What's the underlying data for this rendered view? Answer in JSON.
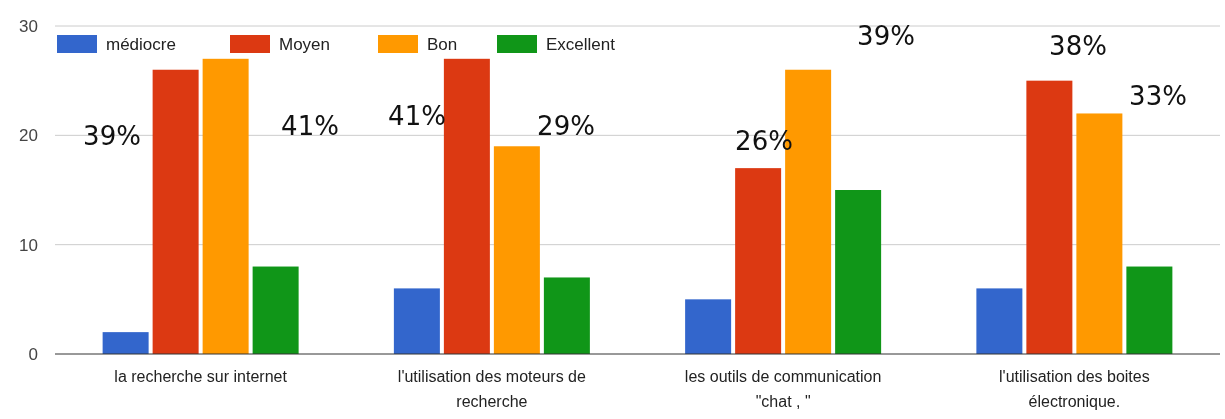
{
  "chart_data": {
    "type": "bar",
    "categories": [
      "la recherche sur internet",
      "l'utilisation des moteurs de recherche",
      "les outils de communication \"chat , \"",
      "l'utilisation des boites électronique."
    ],
    "series": [
      {
        "name": "médiocre",
        "color": "#3366cc",
        "values": [
          2,
          6,
          5,
          6
        ]
      },
      {
        "name": "Moyen",
        "color": "#dc3912",
        "values": [
          26,
          27,
          17,
          25
        ]
      },
      {
        "name": "Bon",
        "color": "#ff9900",
        "values": [
          27,
          19,
          26,
          22
        ]
      },
      {
        "name": "Excellent",
        "color": "#109618",
        "values": [
          8,
          7,
          15,
          8
        ]
      }
    ],
    "ylim": [
      0,
      30
    ],
    "yticks": [
      0,
      10,
      20,
      30
    ],
    "grid": "y",
    "legend": "top left",
    "annotations": [
      "39%",
      "41%",
      "41%",
      "29%",
      "26%",
      "39%",
      "38%",
      "33%"
    ]
  }
}
